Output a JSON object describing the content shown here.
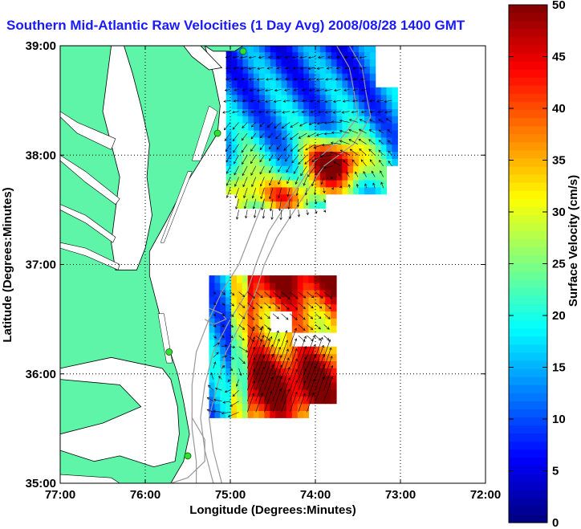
{
  "title": "Southern Mid-Atlantic Raw Velocities (1 Day Avg) 2008/08/28 1400 GMT",
  "xlabel": "Longitude (Degrees:Minutes)",
  "ylabel": "Latitude (Degrees:Minutes)",
  "colorbar_label": "Surface Velocity (cm/s)",
  "x_ticks": [
    "77:00",
    "76:00",
    "75:00",
    "74:00",
    "73:00",
    "72:00"
  ],
  "y_ticks": [
    "39:00",
    "38:00",
    "37:00",
    "36:00",
    "35:00"
  ],
  "colorbar_ticks": [
    "50",
    "45",
    "40",
    "35",
    "30",
    "25",
    "20",
    "15",
    "10",
    "5",
    "0"
  ],
  "colors": {
    "land": "#5ef5a8",
    "title": "#1a1aff",
    "station": "#33dd33",
    "bathymetry": "#999999"
  },
  "chart_data": {
    "type": "heatmap",
    "title": "Southern Mid-Atlantic Raw Velocities (1 Day Avg) 2008/08/28 1400 GMT",
    "xlabel": "Longitude (Degrees:Minutes)",
    "ylabel": "Latitude (Degrees:Minutes)",
    "xlim": [
      -77.0,
      -72.0
    ],
    "ylim": [
      35.0,
      39.0
    ],
    "colorbar": {
      "label": "Surface Velocity (cm/s)",
      "range": [
        0,
        50
      ],
      "colormap": "jet"
    },
    "regions": [
      {
        "name": "northern",
        "lon": [
          -75.05,
          -73.05
        ],
        "lat": [
          37.45,
          38.95
        ],
        "speed_cm_s": [
          5,
          48
        ]
      },
      {
        "name": "southern",
        "lon": [
          -75.25,
          -73.8
        ],
        "lat": [
          35.6,
          36.85
        ],
        "speed_cm_s": [
          5,
          50
        ]
      }
    ],
    "stations": [
      {
        "lon": -74.85,
        "lat": 38.95
      },
      {
        "lon": -75.15,
        "lat": 38.2
      },
      {
        "lon": -75.72,
        "lat": 36.2
      },
      {
        "lon": -75.5,
        "lat": 35.25
      }
    ]
  }
}
